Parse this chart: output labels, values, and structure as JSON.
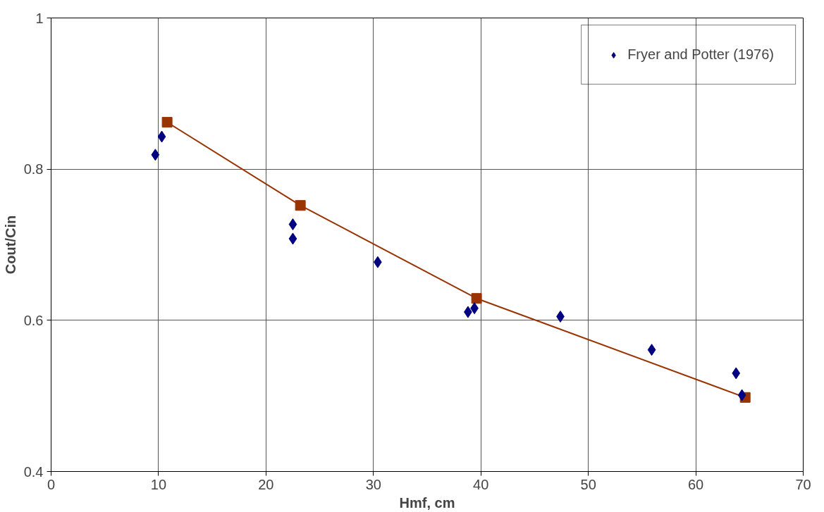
{
  "chart_data": {
    "type": "scatter",
    "xlabel": "Hmf, cm",
    "ylabel": "Cout/Cin",
    "xlim": [
      0,
      70
    ],
    "xticks": [
      0,
      10,
      20,
      30,
      40,
      50,
      60,
      70
    ],
    "ylim": [
      0.4,
      1
    ],
    "yticks": [
      0.4,
      0.6,
      0.8,
      1
    ],
    "grid": true,
    "legend": "top right",
    "series": [
      {
        "name": "Fryer and Potter (1976)",
        "marker": "diamond",
        "color": "#000080",
        "x": [
          9.7,
          10.3,
          22.5,
          22.5,
          30.4,
          38.8,
          39.4,
          47.4,
          55.9,
          63.75,
          64.3
        ],
        "values": [
          0.819,
          0.843,
          0.727,
          0.708,
          0.677,
          0.611,
          0.616,
          0.605,
          0.561,
          0.53,
          0.501
        ]
      },
      {
        "type": "line",
        "marker": "square",
        "color": "#993300",
        "x": [
          10.8,
          23.2,
          39.6,
          64.6
        ],
        "values": [
          0.862,
          0.752,
          0.629,
          0.498
        ]
      }
    ]
  }
}
